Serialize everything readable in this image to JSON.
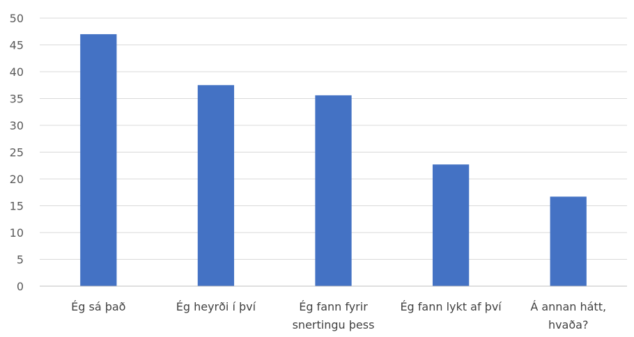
{
  "chart_data": {
    "type": "bar",
    "categories": [
      [
        "Ég sá það"
      ],
      [
        "Ég heyrði í því"
      ],
      [
        "Ég fann fyrir",
        "snertingu þess"
      ],
      [
        "Ég fann lykt af því"
      ],
      [
        "Á annan hátt,",
        "hvaða?"
      ]
    ],
    "values": [
      47,
      37.5,
      35.6,
      22.7,
      16.7
    ],
    "ylim": [
      0,
      50
    ],
    "yticks": [
      0,
      5,
      10,
      15,
      20,
      25,
      30,
      35,
      40,
      45,
      50
    ],
    "grid": true,
    "legend": "none",
    "bar_color": "#4472c4"
  }
}
